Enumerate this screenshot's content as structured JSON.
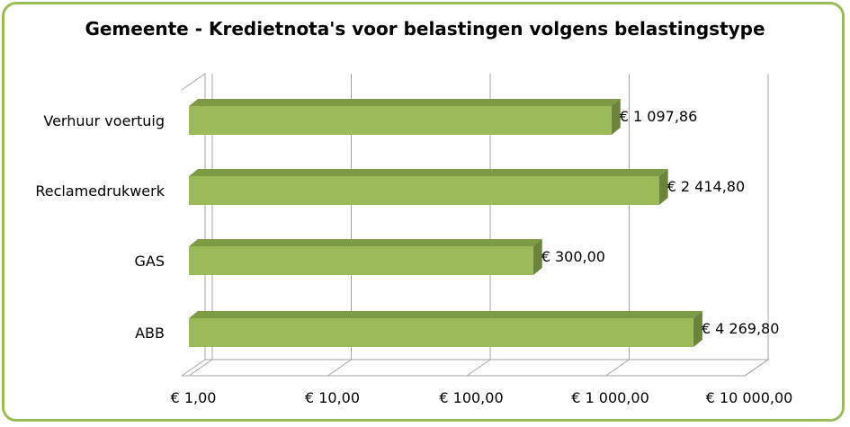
{
  "chart_data": {
    "type": "bar",
    "orientation": "horizontal",
    "title": "Gemeente - Kredietnota's voor belastingen volgens belastingstype",
    "categories": [
      "Verhuur voertuig",
      "Reclamedrukwerk",
      "GAS",
      "ABB"
    ],
    "values": [
      1097.86,
      2414.8,
      300.0,
      4269.8
    ],
    "value_labels": [
      "€ 1 097,86",
      "€ 2 414,80",
      "€  300,00",
      "€ 4 269,80"
    ],
    "x_scale": "log",
    "xlim": [
      1,
      10000
    ],
    "x_ticks": [
      1,
      10,
      100,
      1000,
      10000
    ],
    "x_tick_labels": [
      "€  1,00",
      "€  10,00",
      "€  100,00",
      "€ 1 000,00",
      "€ 10 000,00"
    ],
    "grid": true,
    "legend": "none",
    "colors": {
      "bar_front": "#9bbb59",
      "bar_top": "#7e9a45",
      "bar_side": "#6b833a",
      "border": "#9bbb59"
    }
  }
}
